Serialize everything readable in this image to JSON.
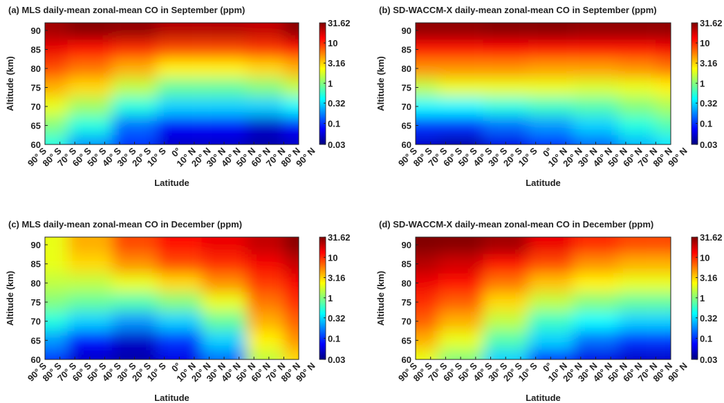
{
  "chart_data": [
    {
      "type": "contour",
      "title": "(a) MLS daily-mean zonal-mean CO in September (ppm)",
      "xlabel": "Latitude",
      "ylabel": "Altitude (km)",
      "x": [
        -90,
        -60,
        -30,
        0,
        30,
        60,
        80
      ],
      "y": [
        60,
        65,
        70,
        75,
        80,
        85,
        90
      ],
      "z": [
        [
          0.5,
          0.2,
          0.1,
          0.05,
          0.05,
          0.04,
          0.05
        ],
        [
          1,
          0.5,
          0.15,
          0.07,
          0.07,
          0.05,
          0.07
        ],
        [
          2,
          1.2,
          0.5,
          0.3,
          0.3,
          0.3,
          0.4
        ],
        [
          4,
          3,
          1.5,
          0.8,
          0.8,
          1,
          1.5
        ],
        [
          8,
          6,
          4,
          2.5,
          2.5,
          3,
          4
        ],
        [
          15,
          12,
          10,
          8,
          8,
          9,
          12
        ],
        [
          25,
          30,
          28,
          22,
          22,
          20,
          30
        ]
      ],
      "xlim": [
        -90,
        80
      ],
      "ylim": [
        60,
        92
      ],
      "xticks": [
        {
          "value": -90,
          "label": "90° S"
        },
        {
          "value": -80,
          "label": "80° S"
        },
        {
          "value": -70,
          "label": "70° S"
        },
        {
          "value": -60,
          "label": "60° S"
        },
        {
          "value": -50,
          "label": "50° S"
        },
        {
          "value": -40,
          "label": "40° S"
        },
        {
          "value": -30,
          "label": "30° S"
        },
        {
          "value": -20,
          "label": "20° S"
        },
        {
          "value": -10,
          "label": "10° S"
        },
        {
          "value": 0,
          "label": "0°"
        },
        {
          "value": 10,
          "label": "10° N"
        },
        {
          "value": 20,
          "label": "20° N"
        },
        {
          "value": 30,
          "label": "30° N"
        },
        {
          "value": 40,
          "label": "40° N"
        },
        {
          "value": 50,
          "label": "50° N"
        },
        {
          "value": 60,
          "label": "60° N"
        },
        {
          "value": 70,
          "label": "70° N"
        },
        {
          "value": 80,
          "label": "80° N"
        },
        {
          "value": 90,
          "label": "90° N"
        }
      ],
      "yticks": [
        60,
        65,
        70,
        75,
        80,
        85,
        90
      ],
      "clim": [
        0.03,
        31.62
      ],
      "cticks": [
        0.03,
        0.1,
        0.32,
        1,
        3.16,
        10,
        31.62
      ],
      "color_log": true,
      "colormap": "jet"
    },
    {
      "type": "contour",
      "title": "(b) SD-WACCM-X daily-mean zonal-mean CO in September (ppm)",
      "xlabel": "Latitude",
      "ylabel": "Altitude (km)",
      "x": [
        -90,
        -60,
        -30,
        0,
        30,
        60,
        80
      ],
      "y": [
        60,
        65,
        70,
        75,
        80,
        85,
        90
      ],
      "z": [
        [
          0.05,
          0.04,
          0.06,
          0.1,
          0.15,
          0.25,
          0.35
        ],
        [
          0.1,
          0.1,
          0.15,
          0.2,
          0.3,
          0.5,
          0.7
        ],
        [
          0.4,
          0.4,
          0.5,
          0.6,
          0.7,
          1,
          1.3
        ],
        [
          1.5,
          2,
          2,
          2,
          1.8,
          2,
          2.5
        ],
        [
          5,
          5,
          5,
          4.5,
          4.5,
          5,
          6
        ],
        [
          12,
          12,
          13,
          12,
          12,
          12,
          14
        ],
        [
          28,
          28,
          30,
          30,
          28,
          28,
          28
        ]
      ],
      "xlim": [
        -90,
        80
      ],
      "ylim": [
        60,
        92
      ],
      "xticks": [
        {
          "value": -90,
          "label": "90° S"
        },
        {
          "value": -80,
          "label": "80° S"
        },
        {
          "value": -70,
          "label": "70° S"
        },
        {
          "value": -60,
          "label": "60° S"
        },
        {
          "value": -50,
          "label": "50° S"
        },
        {
          "value": -40,
          "label": "40° S"
        },
        {
          "value": -30,
          "label": "30° S"
        },
        {
          "value": -20,
          "label": "20° S"
        },
        {
          "value": -10,
          "label": "10° S"
        },
        {
          "value": 0,
          "label": "0°"
        },
        {
          "value": 10,
          "label": "10° N"
        },
        {
          "value": 20,
          "label": "20° N"
        },
        {
          "value": 30,
          "label": "30° N"
        },
        {
          "value": 40,
          "label": "40° N"
        },
        {
          "value": 50,
          "label": "50° N"
        },
        {
          "value": 60,
          "label": "60° N"
        },
        {
          "value": 70,
          "label": "70° N"
        },
        {
          "value": 80,
          "label": "80° N"
        },
        {
          "value": 90,
          "label": "90° N"
        }
      ],
      "yticks": [
        60,
        65,
        70,
        75,
        80,
        85,
        90
      ],
      "clim": [
        0.03,
        31.62
      ],
      "cticks": [
        0.03,
        0.1,
        0.32,
        1,
        3.16,
        10,
        31.62
      ],
      "color_log": true,
      "colormap": "jet"
    },
    {
      "type": "contour",
      "title": "(c) MLS daily-mean zonal-mean CO in December (ppm)",
      "xlabel": "Latitude",
      "ylabel": "Altitude (km)",
      "x": [
        -90,
        -60,
        -30,
        0,
        30,
        60,
        80
      ],
      "y": [
        60,
        65,
        70,
        75,
        80,
        85,
        90
      ],
      "z": [
        [
          0.1,
          0.05,
          0.04,
          0.06,
          0.15,
          1.5,
          3
        ],
        [
          0.2,
          0.08,
          0.05,
          0.1,
          0.3,
          2.5,
          5
        ],
        [
          0.5,
          0.3,
          0.2,
          0.3,
          0.8,
          4,
          7
        ],
        [
          1,
          0.8,
          0.7,
          1,
          2,
          6,
          10
        ],
        [
          1.5,
          1.5,
          2,
          3,
          5,
          9,
          14
        ],
        [
          2,
          3,
          5,
          8,
          10,
          14,
          20
        ],
        [
          2,
          4,
          8,
          12,
          15,
          20,
          30
        ]
      ],
      "xlim": [
        -90,
        80
      ],
      "ylim": [
        60,
        92
      ],
      "xticks": [
        {
          "value": -90,
          "label": "90° S"
        },
        {
          "value": -80,
          "label": "80° S"
        },
        {
          "value": -70,
          "label": "70° S"
        },
        {
          "value": -60,
          "label": "60° S"
        },
        {
          "value": -50,
          "label": "50° S"
        },
        {
          "value": -40,
          "label": "40° S"
        },
        {
          "value": -30,
          "label": "30° S"
        },
        {
          "value": -20,
          "label": "20° S"
        },
        {
          "value": -10,
          "label": "10° S"
        },
        {
          "value": 0,
          "label": "0°"
        },
        {
          "value": 10,
          "label": "10° N"
        },
        {
          "value": 20,
          "label": "20° N"
        },
        {
          "value": 30,
          "label": "30° N"
        },
        {
          "value": 40,
          "label": "40° N"
        },
        {
          "value": 50,
          "label": "50° N"
        },
        {
          "value": 60,
          "label": "60° N"
        },
        {
          "value": 70,
          "label": "70° N"
        },
        {
          "value": 80,
          "label": "80° N"
        },
        {
          "value": 90,
          "label": "90° N"
        }
      ],
      "yticks": [
        60,
        65,
        70,
        75,
        80,
        85,
        90
      ],
      "clim": [
        0.03,
        31.62
      ],
      "cticks": [
        0.03,
        0.1,
        0.32,
        1,
        3.16,
        10,
        31.62
      ],
      "color_log": true,
      "colormap": "jet"
    },
    {
      "type": "contour",
      "title": "(d) SD-WACCM-X daily-mean zonal-mean CO in December (ppm)",
      "xlabel": "Latitude",
      "ylabel": "Altitude (km)",
      "x": [
        -90,
        -60,
        -30,
        0,
        30,
        60,
        80
      ],
      "y": [
        60,
        65,
        70,
        75,
        80,
        85,
        90
      ],
      "z": [
        [
          2,
          1,
          0.3,
          0.1,
          0.06,
          0.05,
          0.05
        ],
        [
          4,
          2,
          0.7,
          0.3,
          0.15,
          0.1,
          0.1
        ],
        [
          7,
          4,
          1.5,
          0.6,
          0.4,
          0.3,
          0.3
        ],
        [
          10,
          7,
          3,
          1.5,
          1,
          0.8,
          0.8
        ],
        [
          15,
          12,
          6,
          3.5,
          2.5,
          2,
          2
        ],
        [
          22,
          18,
          12,
          8,
          5,
          4,
          4
        ],
        [
          31,
          30,
          25,
          15,
          10,
          8,
          8
        ]
      ],
      "xlim": [
        -90,
        80
      ],
      "ylim": [
        60,
        92
      ],
      "xticks": [
        {
          "value": -90,
          "label": "90° S"
        },
        {
          "value": -80,
          "label": "80° S"
        },
        {
          "value": -70,
          "label": "70° S"
        },
        {
          "value": -60,
          "label": "60° S"
        },
        {
          "value": -50,
          "label": "50° S"
        },
        {
          "value": -40,
          "label": "40° S"
        },
        {
          "value": -30,
          "label": "30° S"
        },
        {
          "value": -20,
          "label": "20° S"
        },
        {
          "value": -10,
          "label": "10° S"
        },
        {
          "value": 0,
          "label": "0°"
        },
        {
          "value": 10,
          "label": "10° N"
        },
        {
          "value": 20,
          "label": "20° N"
        },
        {
          "value": 30,
          "label": "30° N"
        },
        {
          "value": 40,
          "label": "40° N"
        },
        {
          "value": 50,
          "label": "50° N"
        },
        {
          "value": 60,
          "label": "60° N"
        },
        {
          "value": 70,
          "label": "70° N"
        },
        {
          "value": 80,
          "label": "80° N"
        },
        {
          "value": 90,
          "label": "90° N"
        }
      ],
      "yticks": [
        60,
        65,
        70,
        75,
        80,
        85,
        90
      ],
      "clim": [
        0.03,
        31.62
      ],
      "cticks": [
        0.03,
        0.1,
        0.32,
        1,
        3.16,
        10,
        31.62
      ],
      "color_log": true,
      "colormap": "jet"
    }
  ]
}
